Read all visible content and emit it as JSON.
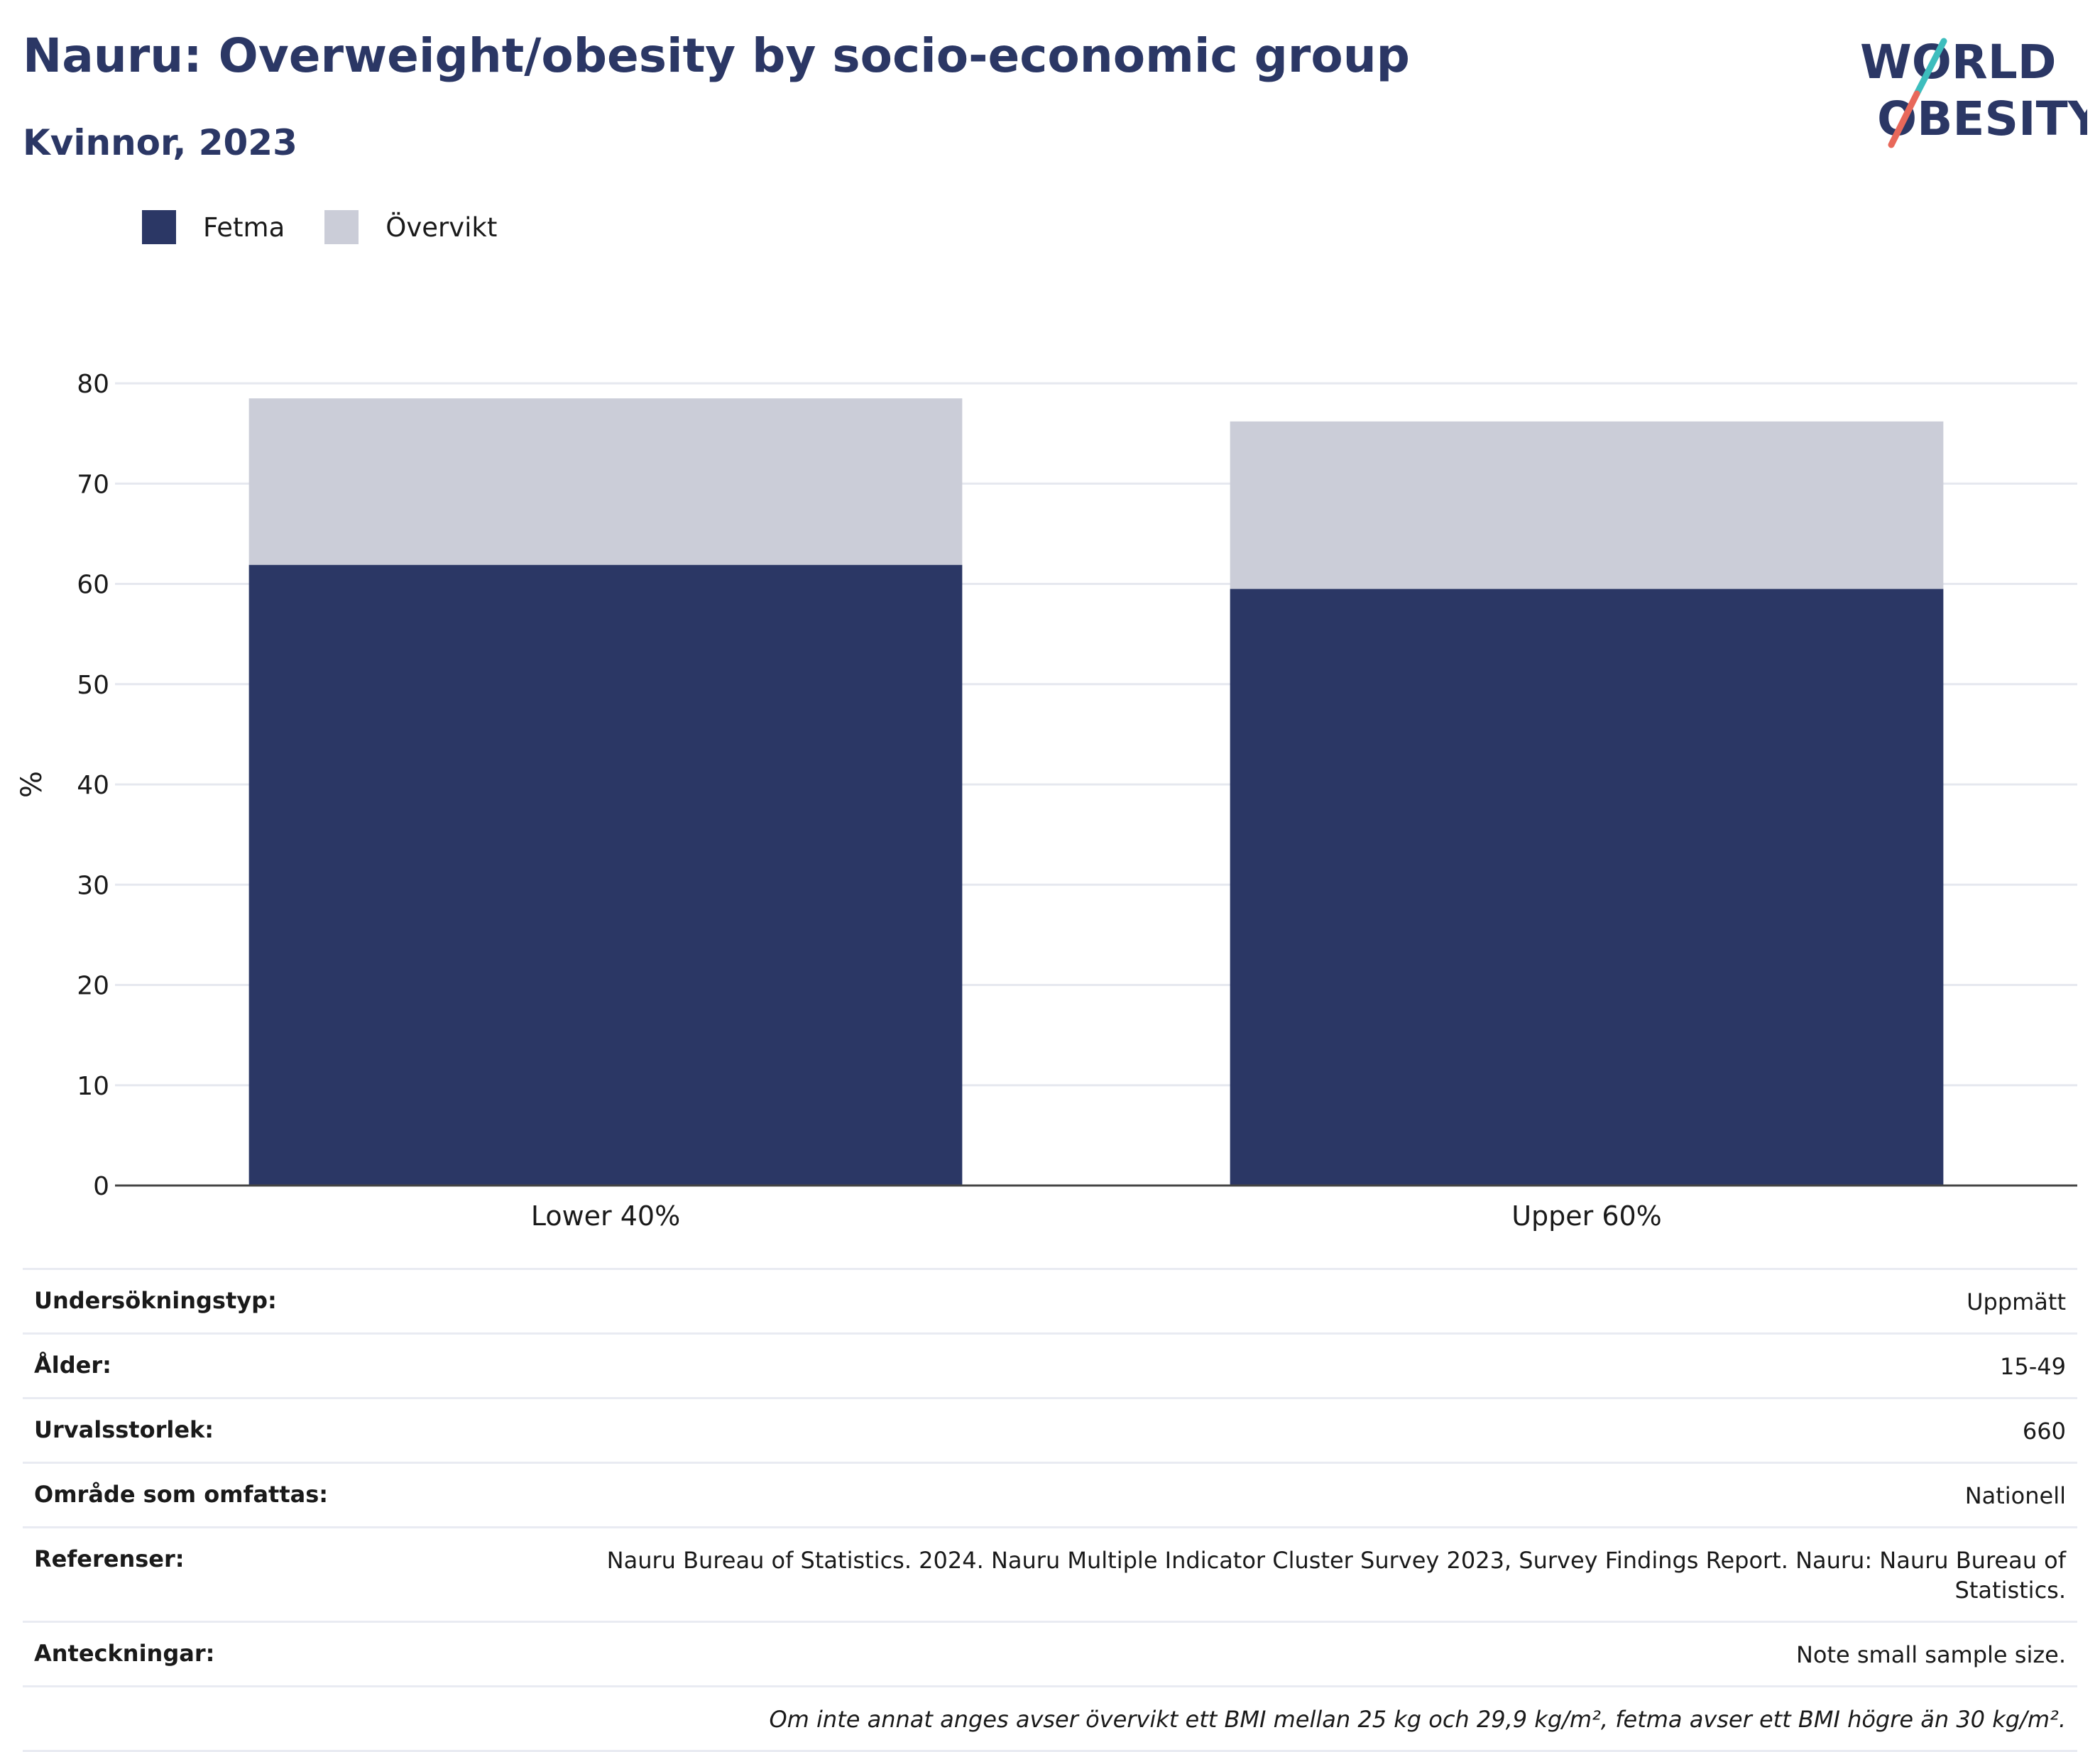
{
  "header": {
    "title": "Nauru: Overweight/obesity by socio-economic group",
    "subtitle": "Kvinnor, 2023"
  },
  "logo": {
    "line1": "WORLD",
    "line2": "OBESITY",
    "colors": {
      "text": "#2b3765",
      "slash_top": "#3dbdbd",
      "slash_bottom": "#e8685a"
    }
  },
  "legend": [
    {
      "label": "Fetma",
      "color": "#2b3765"
    },
    {
      "label": "Övervikt",
      "color": "#cbcdd8"
    }
  ],
  "chart_data": {
    "type": "bar",
    "stacked": true,
    "categories": [
      "Lower 40%",
      "Upper 60%"
    ],
    "series": [
      {
        "name": "Fetma",
        "values": [
          61.9,
          59.5
        ],
        "color": "#2b3765"
      },
      {
        "name": "Övervikt",
        "values": [
          16.6,
          16.7
        ],
        "color": "#cbcdd8"
      }
    ],
    "ylabel": "%",
    "ylim": [
      0,
      80
    ],
    "yticks": [
      0,
      10,
      20,
      30,
      40,
      50,
      60,
      70,
      80
    ],
    "grid": true,
    "legend_position": "top-left"
  },
  "info": {
    "rows": [
      {
        "key": "Undersökningstyp:",
        "value": "Uppmätt"
      },
      {
        "key": "Ålder:",
        "value": "15-49"
      },
      {
        "key": "Urvalsstorlek:",
        "value": "660"
      },
      {
        "key": "Område som omfattas:",
        "value": "Nationell"
      },
      {
        "key": "Referenser:",
        "value": "Nauru Bureau of Statistics. 2024. Nauru Multiple Indicator Cluster Survey 2023, Survey Findings Report. Nauru: Nauru Bureau of Statistics."
      },
      {
        "key": "Anteckningar:",
        "value": "Note small sample size."
      }
    ],
    "footnote": "Om inte annat anges avser övervikt ett BMI mellan 25 kg och 29,9 kg/m², fetma avser ett BMI högre än 30 kg/m²."
  }
}
